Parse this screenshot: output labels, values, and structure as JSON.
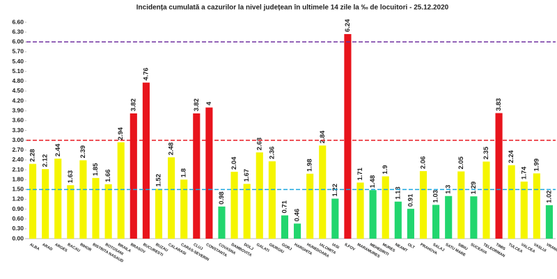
{
  "chart_data": {
    "type": "bar",
    "title": "Incidența cumulată a cazurilor la nivel județean în ultimele 14 zile la ‰ de locuitori - 25.12.2020",
    "categories": [
      "ALBA",
      "ARAD",
      "ARGES",
      "BACAU",
      "BIHOR",
      "BISTRITA NASAUD",
      "BOTOSANI",
      "BRAILA",
      "BRASOV",
      "BUCURESTI",
      "BUZAU",
      "CALARASI",
      "CARAS-SEVERIN",
      "CLUJ",
      "CONSTANTA",
      "COVASNA",
      "DAMBOVITA",
      "DOLJ",
      "GALATI",
      "GIURGIU",
      "GORJ",
      "HARGHITA",
      "HUNEDOARA",
      "IALOMITA",
      "IASI",
      "ILFOV",
      "MARAMURES",
      "MEHEDINTI",
      "MURES",
      "NEAMT",
      "OLT",
      "PRAHOVA",
      "SALAJ",
      "SATU MARE",
      "SIBIU",
      "SUCEAVA",
      "TELEORMAN",
      "TIMIS",
      "TULCEA",
      "VALCEA",
      "VASLUI",
      "VRANCEA"
    ],
    "values": [
      2.28,
      2.12,
      2.44,
      1.63,
      2.39,
      1.85,
      1.66,
      2.94,
      3.82,
      4.76,
      1.52,
      2.48,
      1.8,
      3.82,
      4,
      0.98,
      2.04,
      1.67,
      2.63,
      2.36,
      0.71,
      0.46,
      1.98,
      2.84,
      1.22,
      6.24,
      1.71,
      1.48,
      1.9,
      1.13,
      0.91,
      2.06,
      1.03,
      1.3,
      2.05,
      1.29,
      2.35,
      3.83,
      2.24,
      1.74,
      1.99,
      1.02
    ],
    "colors": [
      "#f5f500",
      "#f5f500",
      "#f5f500",
      "#f5f500",
      "#f5f500",
      "#f5f500",
      "#f5f500",
      "#f5f500",
      "#e8141c",
      "#e8141c",
      "#f5f500",
      "#f5f500",
      "#f5f500",
      "#e8141c",
      "#e8141c",
      "#22d66e",
      "#f5f500",
      "#f5f500",
      "#f5f500",
      "#f5f500",
      "#22d66e",
      "#22d66e",
      "#f5f500",
      "#f5f500",
      "#22d66e",
      "#e8141c",
      "#f5f500",
      "#22d66e",
      "#f5f500",
      "#22d66e",
      "#22d66e",
      "#f5f500",
      "#22d66e",
      "#22d66e",
      "#f5f500",
      "#22d66e",
      "#f5f500",
      "#e8141c",
      "#f5f500",
      "#f5f500",
      "#f5f500",
      "#22d66e"
    ],
    "ylim": [
      0,
      6.6
    ],
    "yticks": [
      {
        "value": 0,
        "label": "0.00"
      },
      {
        "value": 0.3,
        "label": "0.30"
      },
      {
        "value": 0.6,
        "label": "0.60"
      },
      {
        "value": 0.9,
        "label": "0.90"
      },
      {
        "value": 1.2,
        "label": "1.20"
      },
      {
        "value": 1.5,
        "label": "1.50"
      },
      {
        "value": 1.8,
        "label": "1.80"
      },
      {
        "value": 2.1,
        "label": "2.10"
      },
      {
        "value": 2.4,
        "label": "2.40"
      },
      {
        "value": 2.7,
        "label": "2.70"
      },
      {
        "value": 3,
        "label": "3.00"
      },
      {
        "value": 3.3,
        "label": "3.30"
      },
      {
        "value": 3.6,
        "label": "3.60"
      },
      {
        "value": 3.9,
        "label": "3.90"
      },
      {
        "value": 4.2,
        "label": "4.20"
      },
      {
        "value": 4.5,
        "label": "4.50"
      },
      {
        "value": 4.8,
        "label": "4.80"
      },
      {
        "value": 5.1,
        "label": "5.10"
      },
      {
        "value": 5.4,
        "label": "5.40"
      },
      {
        "value": 5.7,
        "label": "5.70"
      },
      {
        "value": 6,
        "label": "6.00"
      },
      {
        "value": 6.3,
        "label": "6.30"
      },
      {
        "value": 6.6,
        "label": "6.60"
      }
    ],
    "reference_lines": [
      {
        "value": 6,
        "color": "#7030a0"
      },
      {
        "value": 3,
        "color": "#e8141c"
      },
      {
        "value": 1.5,
        "color": "#1aa6e0"
      }
    ]
  }
}
